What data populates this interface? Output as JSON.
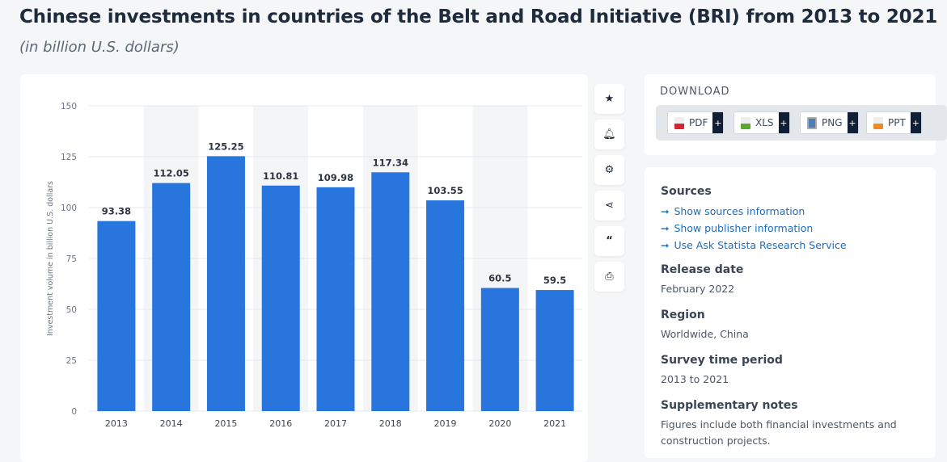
{
  "header": {
    "title": "Chinese investments in countries of the Belt and Road Initiative (BRI) from 2013 to 2021",
    "subtitle": "(in billion U.S. dollars)"
  },
  "toolbar": {
    "icons": [
      "star-icon",
      "bell-icon",
      "gear-icon",
      "share-icon",
      "quote-icon",
      "print-icon"
    ]
  },
  "download": {
    "title": "DOWNLOAD",
    "buttons": [
      {
        "label": "PDF",
        "color": "#d9232e"
      },
      {
        "label": "XLS",
        "color": "#5aa832"
      },
      {
        "label": "PNG",
        "color": "#4a7fb8"
      },
      {
        "label": "PPT",
        "color": "#f08a24"
      }
    ],
    "plus": "+"
  },
  "info": {
    "sources_title": "Sources",
    "links": [
      "Show sources information",
      "Show publisher information",
      "Use Ask Statista Research Service"
    ],
    "release_title": "Release date",
    "release": "February 2022",
    "region_title": "Region",
    "region": "Worldwide, China",
    "period_title": "Survey time period",
    "period": "2013 to 2021",
    "notes_title": "Supplementary notes",
    "notes": "Figures include both financial investments and construction projects."
  },
  "chart_data": {
    "type": "bar",
    "categories": [
      "2013",
      "2014",
      "2015",
      "2016",
      "2017",
      "2018",
      "2019",
      "2020",
      "2021"
    ],
    "values": [
      93.38,
      112.05,
      125.25,
      110.81,
      109.98,
      117.34,
      103.55,
      60.5,
      59.5
    ],
    "value_labels": [
      "93.38",
      "112.05",
      "125.25",
      "110.81",
      "109.98",
      "117.34",
      "103.55",
      "60.5",
      "59.5"
    ],
    "ylabel": "Investment volume in billion U.S. dollars",
    "ylim": [
      0,
      150
    ],
    "yticks": [
      0,
      25,
      50,
      75,
      100,
      125,
      150
    ],
    "grid": true,
    "bar_color": "#2876dd"
  }
}
